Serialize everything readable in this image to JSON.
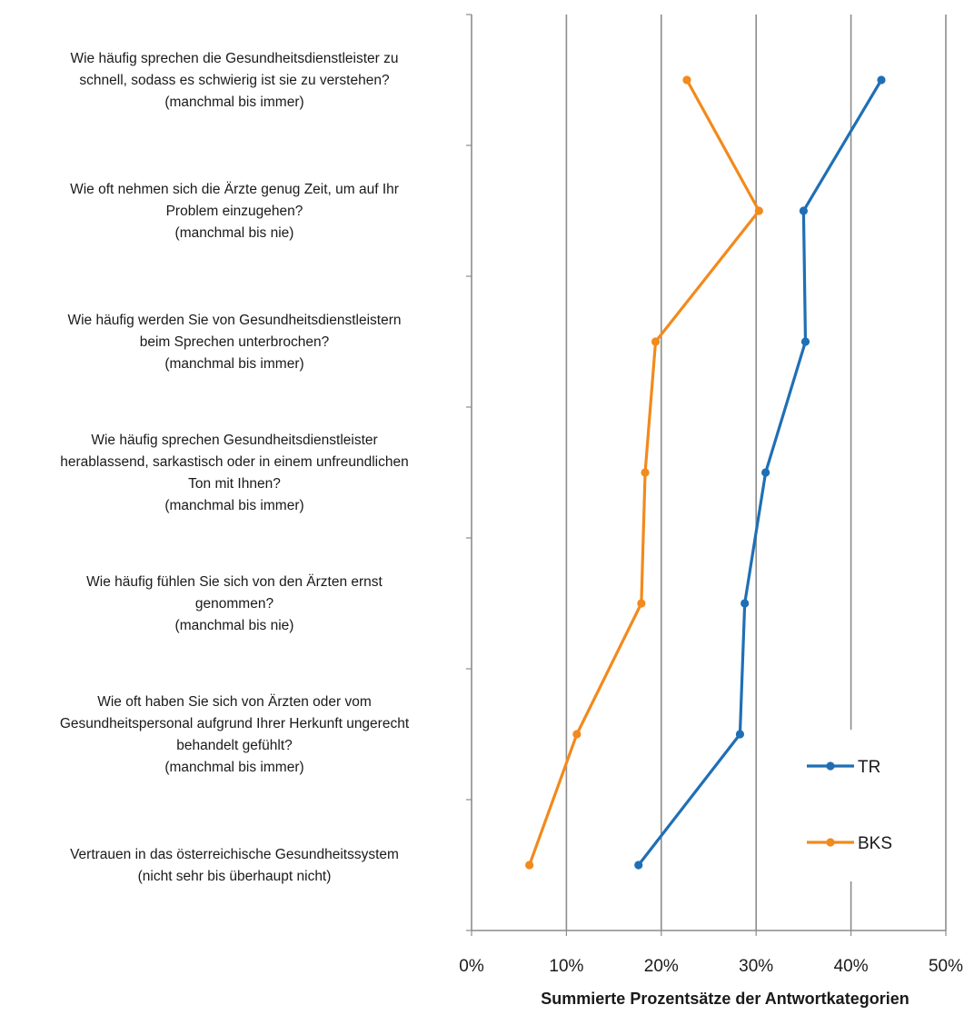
{
  "chart_data": {
    "type": "line",
    "orientation": "horizontal-values",
    "categories": [
      {
        "lines": [
          "Wie häufig sprechen die Gesundheitsdienstleister zu",
          "schnell, sodass es schwierig ist sie zu verstehen?",
          "(manchmal bis immer)"
        ]
      },
      {
        "lines": [
          "Wie oft nehmen sich die Ärzte genug Zeit, um auf Ihr",
          "Problem einzugehen?",
          "(manchmal bis nie)"
        ]
      },
      {
        "lines": [
          "Wie häufig werden Sie von Gesundheitsdienstleistern",
          "beim Sprechen unterbrochen?",
          "(manchmal bis immer)"
        ]
      },
      {
        "lines": [
          "Wie häufig sprechen Gesundheitsdienstleister",
          "herablassend, sarkastisch oder in einem unfreundlichen",
          "Ton mit Ihnen?",
          "(manchmal bis immer)"
        ]
      },
      {
        "lines": [
          "Wie häufig fühlen Sie sich von den Ärzten ernst",
          "genommen?",
          "(manchmal bis nie)"
        ]
      },
      {
        "lines": [
          "Wie oft haben Sie sich von Ärzten oder vom",
          "Gesundheitspersonal aufgrund Ihrer Herkunft ungerecht",
          "behandelt gefühlt?",
          "(manchmal bis immer)"
        ]
      },
      {
        "lines": [
          "Vertrauen in das österreichische Gesundheitssystem",
          "(nicht sehr bis überhaupt nicht)"
        ]
      }
    ],
    "series": [
      {
        "name": "TR",
        "color": "#1f6fb5",
        "values": [
          43.2,
          35.0,
          35.2,
          31.0,
          28.8,
          28.3,
          17.6
        ]
      },
      {
        "name": "BKS",
        "color": "#f28a1c",
        "values": [
          22.7,
          30.3,
          19.4,
          18.3,
          17.9,
          11.1,
          6.1
        ]
      }
    ],
    "x_ticks": [
      "0%",
      "10%",
      "20%",
      "30%",
      "40%",
      "50%"
    ],
    "xlim": [
      0,
      50
    ],
    "xlabel": "Summierte Prozentsätze der Antwortkategorien",
    "grid": true,
    "legend_position": "lower-right"
  }
}
